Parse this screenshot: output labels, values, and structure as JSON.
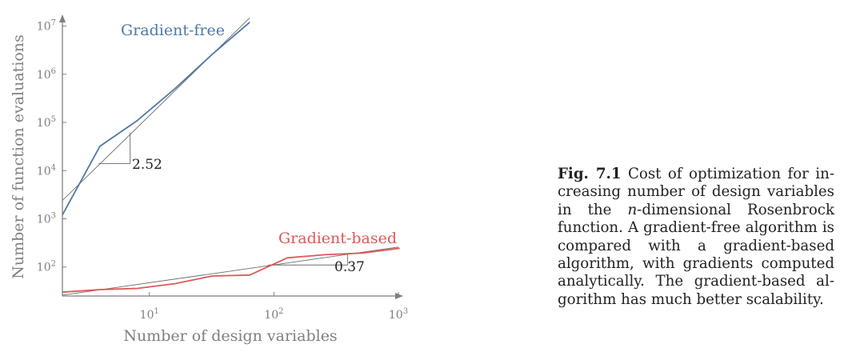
{
  "chart_data": {
    "type": "line",
    "xscale": "log",
    "yscale": "log",
    "xlim": [
      2,
      1000
    ],
    "ylim": [
      25,
      15000000
    ],
    "xlabel": "Number of design variables",
    "ylabel": "Number of function evaluations",
    "x_ticks": [
      {
        "value": 10,
        "base": "10",
        "exp": "1"
      },
      {
        "value": 100,
        "base": "10",
        "exp": "2"
      },
      {
        "value": 1000,
        "base": "10",
        "exp": "3"
      }
    ],
    "y_ticks": [
      {
        "value": 100,
        "base": "10",
        "exp": "2"
      },
      {
        "value": 1000,
        "base": "10",
        "exp": "3"
      },
      {
        "value": 10000,
        "base": "10",
        "exp": "4"
      },
      {
        "value": 100000,
        "base": "10",
        "exp": "5"
      },
      {
        "value": 1000000,
        "base": "10",
        "exp": "6"
      },
      {
        "value": 10000000,
        "base": "10",
        "exp": "7"
      }
    ],
    "grid": false,
    "series": [
      {
        "name": "Gradient-free",
        "color": "#4e79a7",
        "x": [
          2,
          4,
          8,
          16,
          32,
          64
        ],
        "y": [
          1200,
          32000,
          110000,
          500000,
          2600000,
          12000000
        ]
      },
      {
        "name": "Gradient-based",
        "color": "#e15759",
        "x": [
          2,
          4,
          8,
          16,
          32,
          64,
          128,
          256,
          512,
          1024
        ],
        "y": [
          30,
          34,
          36,
          45,
          65,
          68,
          155,
          180,
          195,
          245
        ]
      }
    ],
    "fits": [
      {
        "slope_label": "2.52",
        "slope": 2.52,
        "x_range": [
          2,
          64
        ],
        "y_at_x0": 2400,
        "triangle": {
          "x1": 3.9,
          "x2": 7,
          "y_base": 14000
        }
      },
      {
        "slope_label": "0.37",
        "slope": 0.37,
        "x_range": [
          2,
          1000
        ],
        "y_at_x0": 26,
        "triangle": {
          "x1": 90,
          "x2": 390,
          "y_base": 110
        }
      }
    ]
  },
  "caption": {
    "label": "Fig. 7.1",
    "p1": " Cost of optimization for in-creasing number of design variables in the ",
    "var": "n",
    "p2": "-dimensional Rosenbrock function. A gradient-free algorithm is compared with a gradient-based algorithm, with gradients computed analytically. The gradient-based al-gorithm has much better scalability."
  }
}
